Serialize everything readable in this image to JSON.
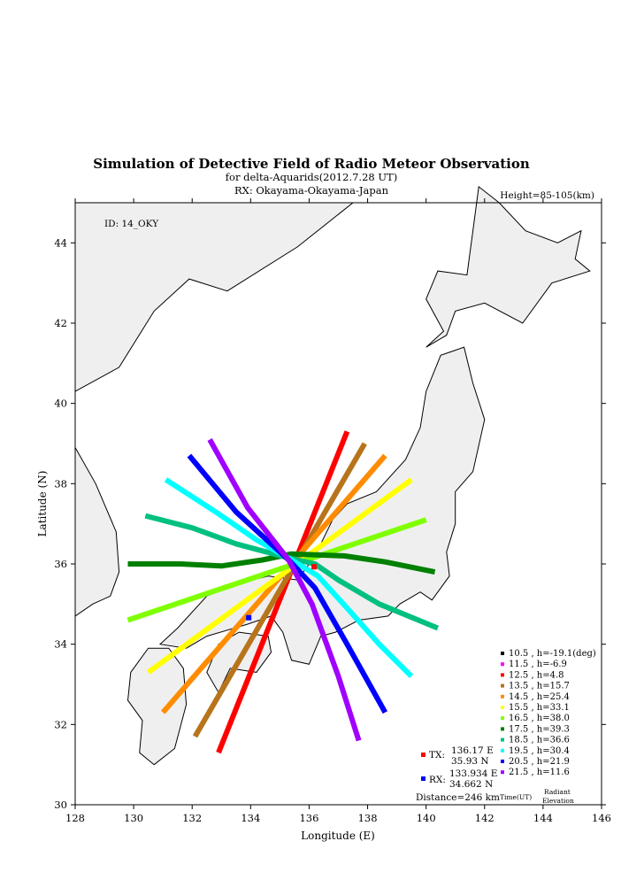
{
  "title": "Simulation of Detective Field of Radio Meteor Observation",
  "subtitle": "for delta-Aquarids(2012.7.28 UT)",
  "rx_line": "RX: Okayama-Okayama-Japan",
  "height_label": "Height=85-105(km)",
  "id_label": "ID: 14_OKY",
  "tx": {
    "label": "TX:",
    "lon": 136.17,
    "lat": 35.93,
    "lon_text": "136.17 E",
    "lat_text": "35.93 N",
    "color": "#ff0000"
  },
  "rx": {
    "label": "RX:",
    "lon": 133.934,
    "lat": 34.662,
    "lon_text": "133.934 E",
    "lat_text": "34.662 N",
    "color": "#0000ff"
  },
  "distance_text": "Distance=246 km",
  "time_label": "Time(UT)",
  "radiant_label": "Radiant",
  "elevation_label": "Elevation",
  "chart_data": {
    "type": "line",
    "xlabel": "Longitude (E)",
    "ylabel": "Latitude (N)",
    "xlim": [
      128,
      146
    ],
    "ylim": [
      30,
      45
    ],
    "xticks": [
      128,
      130,
      132,
      134,
      136,
      138,
      140,
      142,
      144,
      146
    ],
    "yticks": [
      30,
      32,
      34,
      36,
      38,
      40,
      42,
      44
    ],
    "grid": false,
    "legend": "bottom-right",
    "series": [
      {
        "name": "10.5 , h=-19.1(deg)",
        "color": "#000000",
        "points": []
      },
      {
        "name": "11.5 , h=-6.9",
        "color": "#ff00ff",
        "points": []
      },
      {
        "name": "12.5 , h=4.8",
        "color": "#ff0000",
        "points": [
          [
            132.9,
            31.3
          ],
          [
            137.3,
            39.3
          ]
        ]
      },
      {
        "name": "13.5 , h=15.7",
        "color": "#b8741a",
        "points": [
          [
            132.1,
            31.7
          ],
          [
            137.9,
            39.0
          ]
        ]
      },
      {
        "name": "14.5 , h=25.4",
        "color": "#ff8c00",
        "points": [
          [
            131.0,
            32.3
          ],
          [
            138.6,
            38.7
          ]
        ]
      },
      {
        "name": "15.5 , h=33.1",
        "color": "#ffff00",
        "points": [
          [
            130.5,
            33.3
          ],
          [
            139.5,
            38.1
          ]
        ]
      },
      {
        "name": "16.5 , h=38.0",
        "color": "#80ff00",
        "points": [
          [
            129.8,
            34.6
          ],
          [
            140.0,
            37.1
          ]
        ]
      },
      {
        "name": "17.5 , h=39.3",
        "color": "#008000",
        "points": [
          [
            129.8,
            36.0
          ],
          [
            131.6,
            36.0
          ],
          [
            133.0,
            35.95
          ],
          [
            134.4,
            36.1
          ],
          [
            135.4,
            36.25
          ],
          [
            137.2,
            36.2
          ],
          [
            138.6,
            36.05
          ],
          [
            140.3,
            35.8
          ]
        ]
      },
      {
        "name": "18.5 , h=36.6",
        "color": "#00c080",
        "points": [
          [
            130.4,
            37.2
          ],
          [
            132.0,
            36.9
          ],
          [
            133.5,
            36.5
          ],
          [
            135.3,
            36.15
          ],
          [
            136.2,
            36.0
          ],
          [
            137.0,
            35.6
          ],
          [
            138.4,
            35.0
          ],
          [
            140.4,
            34.4
          ]
        ]
      },
      {
        "name": "19.5 , h=30.4",
        "color": "#00ffff",
        "points": [
          [
            131.1,
            38.1
          ],
          [
            132.8,
            37.3
          ],
          [
            134.2,
            36.6
          ],
          [
            135.4,
            36.1
          ],
          [
            136.3,
            35.7
          ],
          [
            137.3,
            34.9
          ],
          [
            138.4,
            34.0
          ],
          [
            139.5,
            33.2
          ]
        ]
      },
      {
        "name": "20.5 , h=21.9",
        "color": "#0000ff",
        "points": [
          [
            131.9,
            38.7
          ],
          [
            133.5,
            37.3
          ],
          [
            135.3,
            36.1
          ],
          [
            136.2,
            35.4
          ],
          [
            137.3,
            34.0
          ],
          [
            138.6,
            32.3
          ]
        ]
      },
      {
        "name": "21.5 , h=11.6",
        "color": "#a000ff",
        "points": [
          [
            132.6,
            39.1
          ],
          [
            133.9,
            37.4
          ],
          [
            135.3,
            36.1
          ],
          [
            136.1,
            35.0
          ],
          [
            137.0,
            33.2
          ],
          [
            137.7,
            31.6
          ]
        ]
      }
    ]
  }
}
